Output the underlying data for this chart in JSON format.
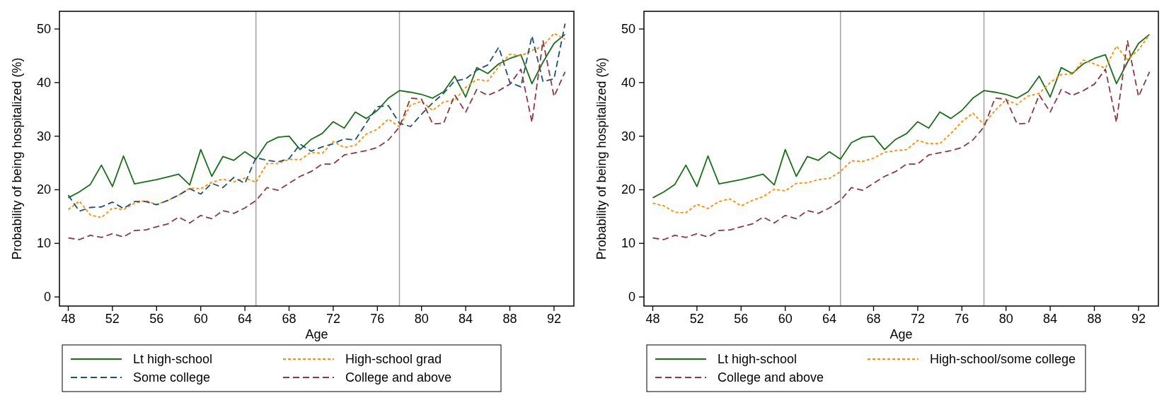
{
  "chart_data": [
    {
      "type": "line",
      "xlabel": "Age",
      "ylabel": "Probability of being hospitalized (%)",
      "x": [
        48,
        49,
        50,
        51,
        52,
        53,
        54,
        55,
        56,
        57,
        58,
        59,
        60,
        61,
        62,
        63,
        64,
        65,
        66,
        67,
        68,
        69,
        70,
        71,
        72,
        73,
        74,
        75,
        76,
        77,
        78,
        79,
        80,
        81,
        82,
        83,
        84,
        85,
        86,
        87,
        88,
        89,
        90,
        91,
        92,
        93
      ],
      "xlim": [
        47.2,
        93.8
      ],
      "xticks": [
        48,
        52,
        56,
        60,
        64,
        68,
        72,
        76,
        80,
        84,
        88,
        92
      ],
      "ylim": [
        -1.7,
        53.3
      ],
      "yticks": [
        0,
        10,
        20,
        30,
        40,
        50
      ],
      "grid": false,
      "legend": "bottom",
      "marker": "none",
      "ref_lines": [
        {
          "axis": "x",
          "value": 65,
          "color": "#a0a0a0"
        },
        {
          "axis": "x",
          "value": 78,
          "color": "#a0a0a0"
        }
      ],
      "series": [
        {
          "name": "Lt high-school",
          "color": "#1a6e1a",
          "line_style": "solid",
          "values": [
            18.5,
            19.6,
            21,
            24.6,
            20.6,
            26.3,
            21.1,
            21.5,
            21.9,
            22.4,
            22.9,
            20.9,
            27.5,
            22.5,
            26.2,
            25.5,
            27.1,
            25.7,
            28.8,
            29.8,
            30,
            27.5,
            29.4,
            30.5,
            32.7,
            31.5,
            34.5,
            33.3,
            34.8,
            37.1,
            38.5,
            38.2,
            37.8,
            37.1,
            38.3,
            41.2,
            37.3,
            42.8,
            41.7,
            43.5,
            44.5,
            45.2,
            39.8,
            43.8,
            47.3,
            49
          ]
        },
        {
          "name": "High-school grad",
          "color": "#ff8c00",
          "line_style": "dotted",
          "values": [
            16.3,
            17.9,
            15.3,
            14.8,
            16.6,
            16.3,
            17.5,
            18,
            17.2,
            18,
            19,
            20.3,
            20.2,
            21.4,
            22,
            21.5,
            22.2,
            21.4,
            24.9,
            24.9,
            25.7,
            25.6,
            27,
            26.8,
            29,
            27.9,
            28.3,
            30.4,
            31.3,
            33.2,
            31.7,
            35.8,
            36.5,
            34.8,
            36.4,
            36.7,
            39.1,
            40.6,
            40.3,
            43,
            45.3,
            45,
            46,
            46.8,
            49.2,
            48.1
          ]
        },
        {
          "name": "Some college",
          "color": "#1f4e79",
          "line_style": "dashed",
          "values": [
            19,
            16,
            16.7,
            16.8,
            17.7,
            16.5,
            17.8,
            17.8,
            17.2,
            18,
            19,
            20.2,
            19.2,
            21.2,
            20.4,
            22.3,
            21.2,
            26,
            25.5,
            25.2,
            25.8,
            28.5,
            27.2,
            28,
            28.6,
            29.5,
            29.3,
            32.5,
            35.5,
            35.7,
            32.4,
            31.8,
            34.1,
            36.2,
            38,
            40.3,
            40.7,
            42.3,
            43.3,
            46.6,
            40,
            39.2,
            48.7,
            40.2,
            40.7,
            51
          ]
        },
        {
          "name": "College and above",
          "color": "#8b3a42",
          "line_style": "dashed",
          "values": [
            11,
            10.7,
            11.5,
            11.1,
            11.8,
            11.2,
            12.4,
            12.5,
            13.1,
            13.6,
            14.9,
            13.8,
            15.2,
            14.6,
            16.1,
            15.6,
            16.6,
            18,
            20.4,
            19.9,
            21.2,
            22.5,
            23.4,
            24.8,
            24.8,
            26.5,
            26.9,
            27.3,
            27.9,
            29.3,
            31.7,
            37.1,
            36.9,
            32.3,
            32.4,
            37.7,
            34.5,
            38.7,
            37.6,
            38.5,
            39.7,
            42.5,
            32.6,
            47.8,
            37.4,
            42
          ]
        }
      ]
    },
    {
      "type": "line",
      "xlabel": "Age",
      "ylabel": "Probability of being hospitalized (%)",
      "x": [
        48,
        49,
        50,
        51,
        52,
        53,
        54,
        55,
        56,
        57,
        58,
        59,
        60,
        61,
        62,
        63,
        64,
        65,
        66,
        67,
        68,
        69,
        70,
        71,
        72,
        73,
        74,
        75,
        76,
        77,
        78,
        79,
        80,
        81,
        82,
        83,
        84,
        85,
        86,
        87,
        88,
        89,
        90,
        91,
        92,
        93
      ],
      "xlim": [
        47.2,
        93.8
      ],
      "xticks": [
        48,
        52,
        56,
        60,
        64,
        68,
        72,
        76,
        80,
        84,
        88,
        92
      ],
      "ylim": [
        -1.7,
        53.3
      ],
      "yticks": [
        0,
        10,
        20,
        30,
        40,
        50
      ],
      "grid": false,
      "legend": "bottom",
      "marker": "none",
      "ref_lines": [
        {
          "axis": "x",
          "value": 65,
          "color": "#a0a0a0"
        },
        {
          "axis": "x",
          "value": 78,
          "color": "#a0a0a0"
        }
      ],
      "series": [
        {
          "name": "Lt high-school",
          "color": "#1a6e1a",
          "line_style": "solid",
          "values": [
            18.5,
            19.6,
            21,
            24.6,
            20.6,
            26.3,
            21.1,
            21.5,
            21.9,
            22.4,
            22.9,
            20.9,
            27.5,
            22.5,
            26.2,
            25.5,
            27.1,
            25.7,
            28.8,
            29.8,
            30,
            27.5,
            29.4,
            30.5,
            32.7,
            31.5,
            34.5,
            33.3,
            34.8,
            37.1,
            38.5,
            38.2,
            37.8,
            37.1,
            38.3,
            41.2,
            37.3,
            42.8,
            41.7,
            43.5,
            44.5,
            45.2,
            39.8,
            43.8,
            47.3,
            49
          ]
        },
        {
          "name": "High-school/some college",
          "color": "#ff8c00",
          "line_style": "dotted",
          "values": [
            17.5,
            17,
            15.8,
            15.7,
            17.3,
            16.5,
            17.8,
            18.3,
            17,
            18,
            18.7,
            20.1,
            19.8,
            21.2,
            21.3,
            21.9,
            22.1,
            23.4,
            25.4,
            25.3,
            25.9,
            27,
            27.3,
            27.5,
            29.2,
            28.6,
            28.6,
            30.5,
            32.7,
            34.3,
            32.2,
            34.8,
            36.8,
            35.9,
            37.5,
            38,
            40,
            41.5,
            41.6,
            44.2,
            43.5,
            42.7,
            46.8,
            44.3,
            46.1,
            49
          ]
        },
        {
          "name": "College and above",
          "color": "#8b3a42",
          "line_style": "dashed",
          "values": [
            11,
            10.7,
            11.5,
            11.1,
            11.8,
            11.2,
            12.4,
            12.5,
            13.1,
            13.6,
            14.9,
            13.8,
            15.2,
            14.6,
            16.1,
            15.6,
            16.6,
            18,
            20.4,
            19.9,
            21.2,
            22.5,
            23.4,
            24.8,
            24.8,
            26.5,
            26.9,
            27.3,
            27.9,
            29.3,
            31.7,
            37.1,
            36.9,
            32.3,
            32.4,
            37.7,
            34.5,
            38.7,
            37.6,
            38.5,
            39.7,
            42.5,
            32.6,
            47.8,
            37.4,
            42
          ]
        }
      ]
    }
  ]
}
